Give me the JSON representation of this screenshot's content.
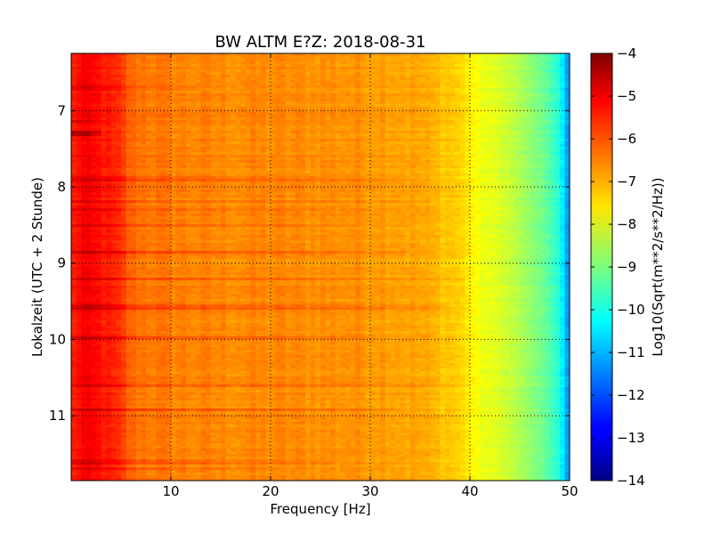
{
  "chart_data": {
    "type": "heatmap",
    "title": "BW ALTM E?Z: 2018-08-31",
    "xlabel": "Frequency [Hz]",
    "ylabel": "Lokalzeit (UTC + 2 Stunde)",
    "xlim": [
      0,
      50
    ],
    "ylim": [
      6.25,
      11.85
    ],
    "y_inverted": true,
    "x_ticks": [
      10,
      20,
      30,
      40,
      50
    ],
    "y_ticks": [
      7,
      8,
      9,
      10,
      11
    ],
    "grid": true,
    "grid_style": "dotted",
    "colormap": "jet",
    "colorbar": {
      "label": "Log10(Sqrt(m**2/s**2/Hz))",
      "range": [
        -14,
        -4
      ],
      "ticks": [
        -4,
        -5,
        -6,
        -7,
        -8,
        -9,
        -10,
        -11,
        -12,
        -13,
        -14
      ]
    },
    "frequency_profile": {
      "frequency_hz": [
        0,
        1,
        2,
        3,
        4,
        5,
        6,
        8,
        10,
        15,
        20,
        25,
        30,
        33,
        35,
        37,
        38,
        39,
        40,
        41,
        42,
        43,
        44,
        45,
        46,
        47,
        48,
        49,
        49.5,
        50
      ],
      "log10_amplitude": [
        -5.7,
        -5.2,
        -5.3,
        -5.4,
        -5.6,
        -5.8,
        -6.3,
        -6.4,
        -6.5,
        -6.6,
        -6.6,
        -6.65,
        -6.7,
        -6.8,
        -6.9,
        -7.1,
        -7.2,
        -7.3,
        -7.6,
        -7.9,
        -8.0,
        -8.1,
        -8.3,
        -8.55,
        -8.8,
        -9.1,
        -9.4,
        -10.0,
        -10.8,
        -11.5
      ]
    },
    "events": [
      {
        "time": 7.3,
        "fmax": 3,
        "boost": 1.1
      },
      {
        "time": 7.15,
        "fmax": 2,
        "boost": 0.6
      },
      {
        "time": 6.7,
        "fmax": 13,
        "boost": 0.35
      },
      {
        "time": 7.9,
        "fmax": 34,
        "boost": 0.4
      },
      {
        "time": 8.2,
        "fmax": 36,
        "boost": 0.35
      },
      {
        "time": 8.3,
        "fmax": 30,
        "boost": 0.3
      },
      {
        "time": 8.5,
        "fmax": 34,
        "boost": 0.5
      },
      {
        "time": 8.85,
        "fmax": 34,
        "boost": 0.6
      },
      {
        "time": 9.2,
        "fmax": 40,
        "boost": 0.55
      },
      {
        "time": 9.58,
        "fmax": 38,
        "boost": 0.55
      },
      {
        "time": 9.98,
        "fmax": 30,
        "boost": 0.5
      },
      {
        "time": 10.6,
        "fmax": 40,
        "boost": 0.4
      },
      {
        "time": 10.93,
        "fmax": 33,
        "boost": 0.5
      },
      {
        "time": 11.6,
        "fmax": 26,
        "boost": 0.4
      },
      {
        "time": 11.7,
        "fmax": 20,
        "boost": 0.3
      }
    ]
  }
}
